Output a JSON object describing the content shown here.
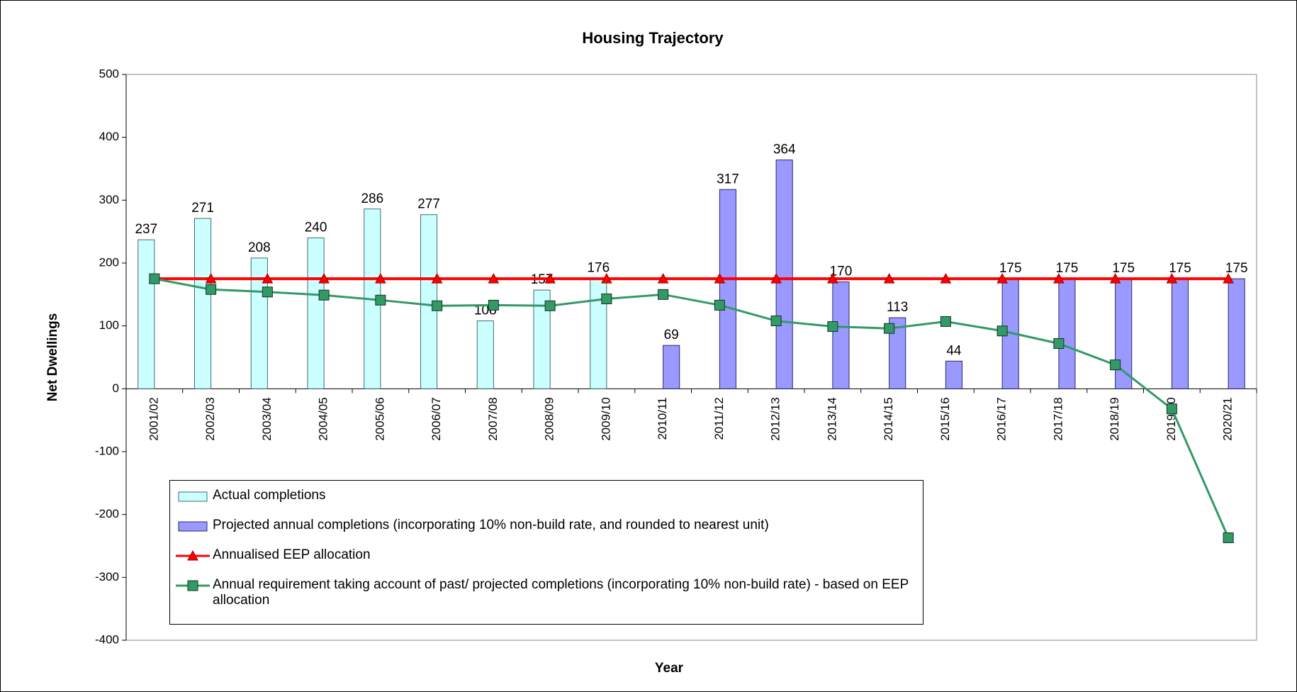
{
  "chart_data": {
    "type": "bar",
    "title": "Housing Trajectory",
    "x_label": "Year",
    "y_label": "Net Dwellings",
    "categories": [
      "2001/02",
      "2002/03",
      "2003/04",
      "2004/05",
      "2005/06",
      "2006/07",
      "2007/08",
      "2008/09",
      "2009/10",
      "2010/11",
      "2011/12",
      "2012/13",
      "2013/14",
      "2014/15",
      "2015/16",
      "2016/17",
      "2017/18",
      "2018/19",
      "2019/20",
      "2020/21"
    ],
    "series": [
      {
        "name": "Actual completions",
        "type": "bar",
        "color": "#ccffff",
        "values": [
          237,
          271,
          208,
          240,
          286,
          277,
          108,
          157,
          176,
          null,
          null,
          null,
          null,
          null,
          null,
          null,
          null,
          null,
          null,
          null
        ]
      },
      {
        "name": "Projected annual completions (incorporating 10% non-build rate, and rounded to nearest unit)",
        "type": "bar",
        "color": "#9999ff",
        "values": [
          null,
          null,
          null,
          null,
          null,
          null,
          null,
          null,
          null,
          69,
          317,
          364,
          170,
          113,
          44,
          175,
          175,
          175,
          175,
          175
        ]
      },
      {
        "name": "Annualised EEP allocation",
        "type": "line",
        "marker": "triangle",
        "color": "#ff0000",
        "values": [
          175,
          175,
          175,
          175,
          175,
          175,
          175,
          175,
          175,
          175,
          175,
          175,
          175,
          175,
          175,
          175,
          175,
          175,
          175,
          175
        ]
      },
      {
        "name": "Annual requirement taking account of past/ projected completions (incorporating 10% non-build rate) - based on EEP allocation",
        "type": "line",
        "marker": "square",
        "color": "#339966",
        "values": [
          175,
          158,
          154,
          149,
          141,
          132,
          133,
          132,
          143,
          150,
          133,
          108,
          99,
          96,
          107,
          92,
          72,
          38,
          -32,
          -237
        ]
      }
    ],
    "ylim": [
      -400,
      500
    ],
    "yticks": [
      -400,
      -300,
      -200,
      -100,
      0,
      100,
      200,
      300,
      400,
      500
    ]
  }
}
